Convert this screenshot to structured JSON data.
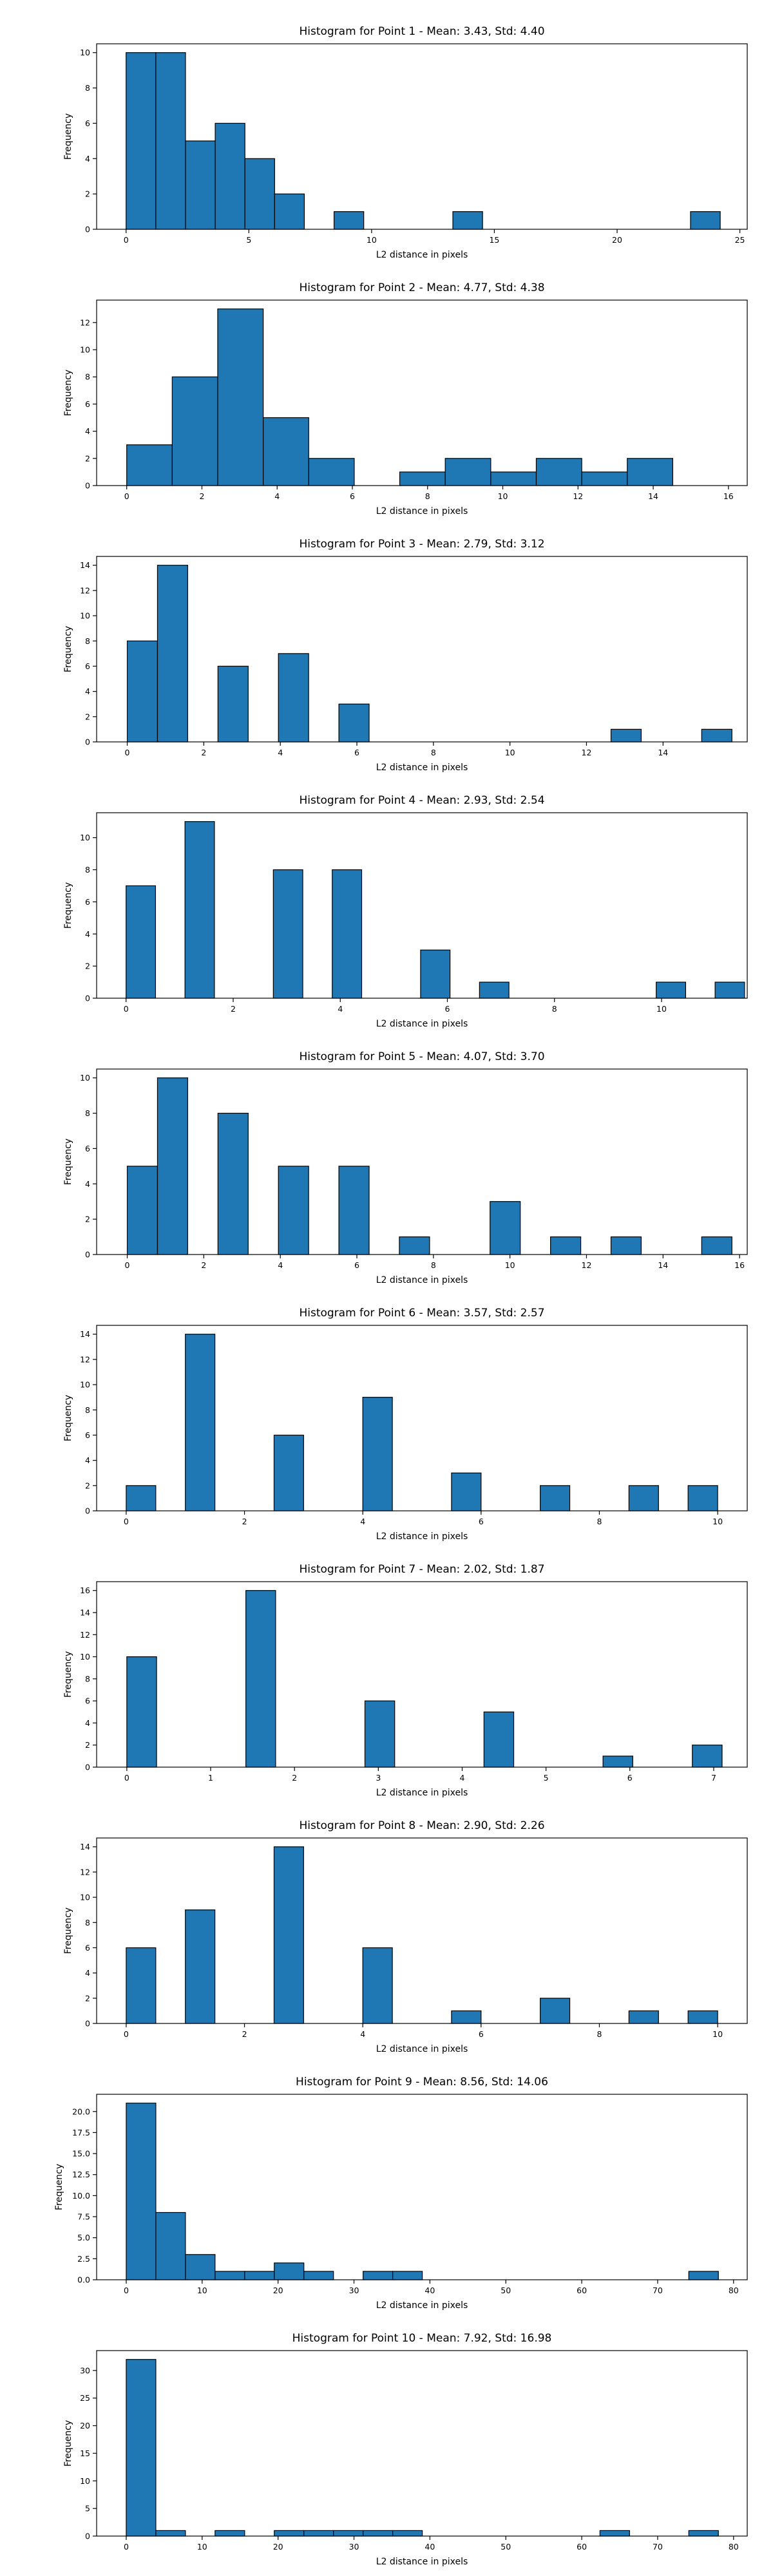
{
  "colors": {
    "bar_fill": "#1f77b4",
    "bar_edge": "#000000",
    "background": "#ffffff"
  },
  "chart_data": [
    {
      "type": "bar",
      "title": "Histogram for Point 1 - Mean: 3.43, Std: 4.40",
      "xlabel": "L2 distance in pixels",
      "ylabel": "Frequency",
      "xlim": [
        -1.2,
        25.3
      ],
      "ylim": [
        0,
        10.5
      ],
      "xticks": [
        0,
        5,
        10,
        15,
        20,
        25
      ],
      "yticks": [
        0,
        2,
        4,
        6,
        8,
        10
      ],
      "bins": [
        {
          "x0": 0,
          "x1": 1.21,
          "count": 10
        },
        {
          "x0": 1.21,
          "x1": 2.42,
          "count": 10
        },
        {
          "x0": 2.42,
          "x1": 3.63,
          "count": 5
        },
        {
          "x0": 3.63,
          "x1": 4.84,
          "count": 6
        },
        {
          "x0": 4.84,
          "x1": 6.05,
          "count": 4
        },
        {
          "x0": 6.05,
          "x1": 7.26,
          "count": 2
        },
        {
          "x0": 8.47,
          "x1": 9.68,
          "count": 1
        },
        {
          "x0": 13.31,
          "x1": 14.52,
          "count": 1
        },
        {
          "x0": 22.99,
          "x1": 24.2,
          "count": 1
        }
      ]
    },
    {
      "type": "bar",
      "title": "Histogram for Point 2 - Mean: 4.77, Std: 4.38",
      "xlabel": "L2 distance in pixels",
      "ylabel": "Frequency",
      "xlim": [
        -0.8,
        16.5
      ],
      "ylim": [
        0,
        13.65
      ],
      "xticks": [
        0,
        2,
        4,
        6,
        8,
        10,
        12,
        14,
        16
      ],
      "yticks": [
        0,
        2,
        4,
        6,
        8,
        10,
        12
      ],
      "bins": [
        {
          "x0": 0,
          "x1": 1.21,
          "count": 3
        },
        {
          "x0": 1.21,
          "x1": 2.42,
          "count": 8
        },
        {
          "x0": 2.42,
          "x1": 3.63,
          "count": 13
        },
        {
          "x0": 3.63,
          "x1": 4.84,
          "count": 5
        },
        {
          "x0": 4.84,
          "x1": 6.05,
          "count": 2
        },
        {
          "x0": 7.26,
          "x1": 8.47,
          "count": 1
        },
        {
          "x0": 8.47,
          "x1": 9.68,
          "count": 2
        },
        {
          "x0": 9.68,
          "x1": 10.89,
          "count": 1
        },
        {
          "x0": 10.89,
          "x1": 12.1,
          "count": 2
        },
        {
          "x0": 12.1,
          "x1": 13.31,
          "count": 1
        },
        {
          "x0": 13.31,
          "x1": 14.52,
          "count": 2
        }
      ]
    },
    {
      "type": "bar",
      "title": "Histogram for Point 3 - Mean: 2.79, Std: 3.12",
      "xlabel": "L2 distance in pixels",
      "ylabel": "Frequency",
      "xlim": [
        -0.8,
        16.2
      ],
      "ylim": [
        0,
        14.7
      ],
      "xticks": [
        0,
        2,
        4,
        6,
        8,
        10,
        12,
        14
      ],
      "yticks": [
        0,
        2,
        4,
        6,
        8,
        10,
        12,
        14
      ],
      "bins": [
        {
          "x0": 0,
          "x1": 0.79,
          "count": 8
        },
        {
          "x0": 0.79,
          "x1": 1.58,
          "count": 14
        },
        {
          "x0": 2.37,
          "x1": 3.16,
          "count": 6
        },
        {
          "x0": 3.95,
          "x1": 4.74,
          "count": 7
        },
        {
          "x0": 5.53,
          "x1": 6.32,
          "count": 3
        },
        {
          "x0": 12.64,
          "x1": 13.43,
          "count": 1
        },
        {
          "x0": 15.01,
          "x1": 15.8,
          "count": 1
        }
      ]
    },
    {
      "type": "bar",
      "title": "Histogram for Point 4 - Mean: 2.93, Std: 2.54",
      "xlabel": "L2 distance in pixels",
      "ylabel": "Frequency",
      "xlim": [
        -0.55,
        11.6
      ],
      "ylim": [
        0,
        11.55
      ],
      "xticks": [
        0,
        2,
        4,
        6,
        8,
        10
      ],
      "yticks": [
        0,
        2,
        4,
        6,
        8,
        10
      ],
      "bins": [
        {
          "x0": 0,
          "x1": 0.55,
          "count": 7
        },
        {
          "x0": 1.1,
          "x1": 1.65,
          "count": 11
        },
        {
          "x0": 2.75,
          "x1": 3.3,
          "count": 8
        },
        {
          "x0": 3.85,
          "x1": 4.4,
          "count": 8
        },
        {
          "x0": 5.5,
          "x1": 6.05,
          "count": 3
        },
        {
          "x0": 6.6,
          "x1": 7.15,
          "count": 1
        },
        {
          "x0": 9.9,
          "x1": 10.45,
          "count": 1
        },
        {
          "x0": 11.0,
          "x1": 11.55,
          "count": 1
        }
      ]
    },
    {
      "type": "bar",
      "title": "Histogram for Point 5 - Mean: 4.07, Std: 3.70",
      "xlabel": "L2 distance in pixels",
      "ylabel": "Frequency",
      "xlim": [
        -0.8,
        16.2
      ],
      "ylim": [
        0,
        10.5
      ],
      "xticks": [
        0,
        2,
        4,
        6,
        8,
        10,
        12,
        14,
        16
      ],
      "yticks": [
        0,
        2,
        4,
        6,
        8,
        10
      ],
      "bins": [
        {
          "x0": 0,
          "x1": 0.79,
          "count": 5
        },
        {
          "x0": 0.79,
          "x1": 1.58,
          "count": 10
        },
        {
          "x0": 2.37,
          "x1": 3.16,
          "count": 8
        },
        {
          "x0": 3.95,
          "x1": 4.74,
          "count": 5
        },
        {
          "x0": 5.53,
          "x1": 6.32,
          "count": 5
        },
        {
          "x0": 7.11,
          "x1": 7.9,
          "count": 1
        },
        {
          "x0": 9.48,
          "x1": 10.27,
          "count": 3
        },
        {
          "x0": 11.06,
          "x1": 11.85,
          "count": 1
        },
        {
          "x0": 12.64,
          "x1": 13.43,
          "count": 1
        },
        {
          "x0": 15.01,
          "x1": 15.8,
          "count": 1
        }
      ]
    },
    {
      "type": "bar",
      "title": "Histogram for Point 6 - Mean: 3.57, Std: 2.57",
      "xlabel": "L2 distance in pixels",
      "ylabel": "Frequency",
      "xlim": [
        -0.5,
        10.5
      ],
      "ylim": [
        0,
        14.7
      ],
      "xticks": [
        0,
        2,
        4,
        6,
        8,
        10
      ],
      "yticks": [
        0,
        2,
        4,
        6,
        8,
        10,
        12,
        14
      ],
      "bins": [
        {
          "x0": 0,
          "x1": 0.5,
          "count": 2
        },
        {
          "x0": 1.0,
          "x1": 1.5,
          "count": 14
        },
        {
          "x0": 2.5,
          "x1": 3.0,
          "count": 6
        },
        {
          "x0": 4.0,
          "x1": 4.5,
          "count": 9
        },
        {
          "x0": 5.5,
          "x1": 6.0,
          "count": 3
        },
        {
          "x0": 7.0,
          "x1": 7.5,
          "count": 2
        },
        {
          "x0": 8.5,
          "x1": 9.0,
          "count": 2
        },
        {
          "x0": 9.5,
          "x1": 10.0,
          "count": 2
        }
      ]
    },
    {
      "type": "bar",
      "title": "Histogram for Point 7 - Mean: 2.02, Std: 1.87",
      "xlabel": "L2 distance in pixels",
      "ylabel": "Frequency",
      "xlim": [
        -0.36,
        7.4
      ],
      "ylim": [
        0,
        16.8
      ],
      "xticks": [
        0,
        1,
        2,
        3,
        4,
        5,
        6,
        7
      ],
      "yticks": [
        0,
        2,
        4,
        6,
        8,
        10,
        12,
        14,
        16
      ],
      "bins": [
        {
          "x0": 0,
          "x1": 0.355,
          "count": 10
        },
        {
          "x0": 1.42,
          "x1": 1.775,
          "count": 16
        },
        {
          "x0": 2.84,
          "x1": 3.195,
          "count": 6
        },
        {
          "x0": 4.26,
          "x1": 4.615,
          "count": 5
        },
        {
          "x0": 5.68,
          "x1": 6.035,
          "count": 1
        },
        {
          "x0": 6.745,
          "x1": 7.1,
          "count": 2
        }
      ]
    },
    {
      "type": "bar",
      "title": "Histogram for Point 8 - Mean: 2.90, Std: 2.26",
      "xlabel": "L2 distance in pixels",
      "ylabel": "Frequency",
      "xlim": [
        -0.5,
        10.5
      ],
      "ylim": [
        0,
        14.7
      ],
      "xticks": [
        0,
        2,
        4,
        6,
        8,
        10
      ],
      "yticks": [
        0,
        2,
        4,
        6,
        8,
        10,
        12,
        14
      ],
      "bins": [
        {
          "x0": 0,
          "x1": 0.5,
          "count": 6
        },
        {
          "x0": 1.0,
          "x1": 1.5,
          "count": 9
        },
        {
          "x0": 2.5,
          "x1": 3.0,
          "count": 14
        },
        {
          "x0": 4.0,
          "x1": 4.5,
          "count": 6
        },
        {
          "x0": 5.5,
          "x1": 6.0,
          "count": 1
        },
        {
          "x0": 7.0,
          "x1": 7.5,
          "count": 2
        },
        {
          "x0": 8.5,
          "x1": 9.0,
          "count": 1
        },
        {
          "x0": 9.5,
          "x1": 10.0,
          "count": 1
        }
      ]
    },
    {
      "type": "bar",
      "title": "Histogram for Point 9 - Mean: 8.56, Std: 14.06",
      "xlabel": "L2 distance in pixels",
      "ylabel": "Frequency",
      "xlim": [
        -3.9,
        81.8
      ],
      "ylim": [
        0,
        22.05
      ],
      "xticks": [
        0,
        10,
        20,
        30,
        40,
        50,
        60,
        70,
        80
      ],
      "yticks": [
        0.0,
        2.5,
        5.0,
        7.5,
        10.0,
        12.5,
        15.0,
        17.5,
        20.0
      ],
      "ytick_decimals": 1,
      "bins": [
        {
          "x0": 0,
          "x1": 3.9,
          "count": 21
        },
        {
          "x0": 3.9,
          "x1": 7.8,
          "count": 8
        },
        {
          "x0": 7.8,
          "x1": 11.7,
          "count": 3
        },
        {
          "x0": 11.7,
          "x1": 15.6,
          "count": 1
        },
        {
          "x0": 15.6,
          "x1": 19.5,
          "count": 1
        },
        {
          "x0": 19.5,
          "x1": 23.4,
          "count": 2
        },
        {
          "x0": 23.4,
          "x1": 27.3,
          "count": 1
        },
        {
          "x0": 31.2,
          "x1": 35.1,
          "count": 1
        },
        {
          "x0": 35.1,
          "x1": 39.0,
          "count": 1
        },
        {
          "x0": 74.1,
          "x1": 78.0,
          "count": 1
        }
      ]
    },
    {
      "type": "bar",
      "title": "Histogram for Point 10 - Mean: 7.92, Std: 16.98",
      "xlabel": "L2 distance in pixels",
      "ylabel": "Frequency",
      "xlim": [
        -3.9,
        81.8
      ],
      "ylim": [
        0,
        33.6
      ],
      "xticks": [
        0,
        10,
        20,
        30,
        40,
        50,
        60,
        70,
        80
      ],
      "yticks": [
        0,
        5,
        10,
        15,
        20,
        25,
        30
      ],
      "bins": [
        {
          "x0": 0,
          "x1": 3.9,
          "count": 32
        },
        {
          "x0": 3.9,
          "x1": 7.8,
          "count": 1
        },
        {
          "x0": 11.7,
          "x1": 15.6,
          "count": 1
        },
        {
          "x0": 19.5,
          "x1": 23.4,
          "count": 1
        },
        {
          "x0": 23.4,
          "x1": 27.3,
          "count": 1
        },
        {
          "x0": 27.3,
          "x1": 31.2,
          "count": 1
        },
        {
          "x0": 31.2,
          "x1": 35.1,
          "count": 1
        },
        {
          "x0": 35.1,
          "x1": 39.0,
          "count": 1
        },
        {
          "x0": 62.4,
          "x1": 66.3,
          "count": 1
        },
        {
          "x0": 74.1,
          "x1": 78.0,
          "count": 1
        }
      ]
    }
  ]
}
